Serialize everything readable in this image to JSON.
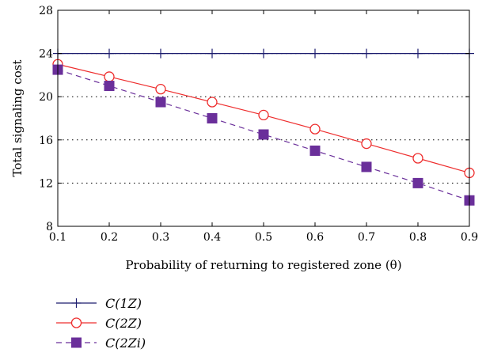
{
  "chart_data": {
    "type": "line",
    "title": "",
    "xlabel": "Probability of returning to registered zone (θ)",
    "ylabel": "Total signaling cost",
    "x": [
      0.1,
      0.2,
      0.3,
      0.4,
      0.5,
      0.6,
      0.7,
      0.8,
      0.9
    ],
    "xlim": [
      0.1,
      0.9
    ],
    "ylim": [
      8,
      28
    ],
    "x_ticks": [
      "0.1",
      "0.2",
      "0.3",
      "0.4",
      "0.5",
      "0.6",
      "0.7",
      "0.8",
      "0.9"
    ],
    "y_ticks": [
      "8",
      "12",
      "16",
      "20",
      "24",
      "28"
    ],
    "grid": "horizontal dotted",
    "legend_position": "below plot, left",
    "series": [
      {
        "name": "C(1Z)",
        "values": [
          24.0,
          24.0,
          24.0,
          24.0,
          24.0,
          24.0,
          24.0,
          24.0,
          24.0
        ],
        "color": "#1c1c6e",
        "line": "solid",
        "marker": "plus"
      },
      {
        "name": "C(2Z)",
        "values": [
          23.0,
          21.85,
          20.7,
          19.5,
          18.3,
          17.0,
          15.65,
          14.3,
          12.95
        ],
        "color": "#ee2d2d",
        "line": "solid",
        "marker": "circle"
      },
      {
        "name": "C(2Zi)",
        "values": [
          22.5,
          21.0,
          19.5,
          18.0,
          16.5,
          15.0,
          13.5,
          12.0,
          10.4
        ],
        "color": "#6a2f9a",
        "line": "dashed",
        "marker": "square"
      }
    ]
  }
}
